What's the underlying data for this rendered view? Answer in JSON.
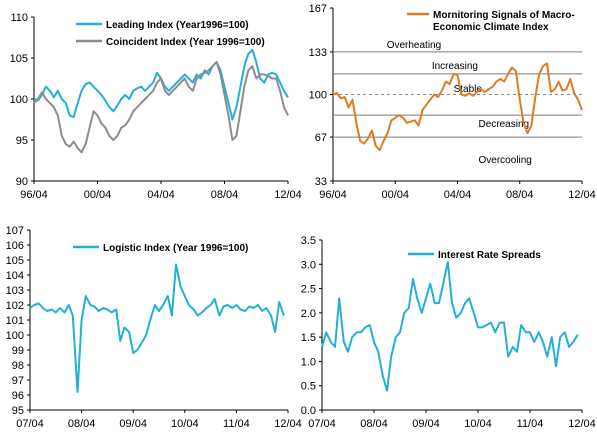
{
  "chart_data": [
    {
      "id": "leading-coincident",
      "type": "line",
      "xlabels": [
        "96/04",
        "00/04",
        "04/04",
        "08/04",
        "12/04"
      ],
      "x_range": [
        1996.25,
        2012.25
      ],
      "ylim": [
        90,
        110
      ],
      "yticks": [
        90,
        95,
        100,
        105,
        110
      ],
      "grid": false,
      "legend_position": "top-right",
      "colors": {
        "Leading Index (Year1996=100)": "#22b0d6",
        "Coincident Index (Year 1996=100)": "#8c8c8c"
      },
      "series": [
        {
          "name": "Leading Index (Year1996=100)",
          "color": "#22b0d6",
          "x": [
            1996.25,
            1996.5,
            1996.75,
            1997.0,
            1997.25,
            1997.5,
            1997.75,
            1998.0,
            1998.25,
            1998.5,
            1998.75,
            1999.0,
            1999.25,
            1999.5,
            1999.75,
            2000.0,
            2000.25,
            2000.5,
            2000.75,
            2001.0,
            2001.25,
            2001.5,
            2001.75,
            2002.0,
            2002.25,
            2002.5,
            2002.75,
            2003.0,
            2003.25,
            2003.5,
            2003.75,
            2004.0,
            2004.25,
            2004.5,
            2004.75,
            2005.0,
            2005.25,
            2005.5,
            2005.75,
            2006.0,
            2006.25,
            2006.5,
            2006.75,
            2007.0,
            2007.25,
            2007.5,
            2007.75,
            2008.0,
            2008.25,
            2008.5,
            2008.75,
            2009.0,
            2009.25,
            2009.5,
            2009.75,
            2010.0,
            2010.25,
            2010.5,
            2010.75,
            2011.0,
            2011.25,
            2011.5,
            2011.75,
            2012.0,
            2012.25
          ],
          "y": [
            100.0,
            99.8,
            100.5,
            101.5,
            101.0,
            100.2,
            101.0,
            100.0,
            99.5,
            98.0,
            97.8,
            99.5,
            101.0,
            101.8,
            102.0,
            101.5,
            101.0,
            100.5,
            99.8,
            99.0,
            98.5,
            99.2,
            100.0,
            100.5,
            100.0,
            101.0,
            101.3,
            101.5,
            101.0,
            101.5,
            102.0,
            103.2,
            102.5,
            101.5,
            101.0,
            101.5,
            102.0,
            102.5,
            103.0,
            102.5,
            102.0,
            103.0,
            102.5,
            103.5,
            103.0,
            104.0,
            104.5,
            103.5,
            101.5,
            99.5,
            97.5,
            99.0,
            101.5,
            104.0,
            105.5,
            106.0,
            104.5,
            102.5,
            102.0,
            103.0,
            103.2,
            103.0,
            102.0,
            101.0,
            100.2
          ]
        },
        {
          "name": "Coincident Index (Year 1996=100)",
          "color": "#8c8c8c",
          "x": [
            1996.25,
            1996.5,
            1996.75,
            1997.0,
            1997.25,
            1997.5,
            1997.75,
            1998.0,
            1998.25,
            1998.5,
            1998.75,
            1999.0,
            1999.25,
            1999.5,
            1999.75,
            2000.0,
            2000.25,
            2000.5,
            2000.75,
            2001.0,
            2001.25,
            2001.5,
            2001.75,
            2002.0,
            2002.25,
            2002.5,
            2002.75,
            2003.0,
            2003.25,
            2003.5,
            2003.75,
            2004.0,
            2004.25,
            2004.5,
            2004.75,
            2005.0,
            2005.25,
            2005.5,
            2005.75,
            2006.0,
            2006.25,
            2006.5,
            2006.75,
            2007.0,
            2007.25,
            2007.5,
            2007.75,
            2008.0,
            2008.25,
            2008.5,
            2008.75,
            2009.0,
            2009.25,
            2009.5,
            2009.75,
            2010.0,
            2010.25,
            2010.5,
            2010.75,
            2011.0,
            2011.25,
            2011.5,
            2011.75,
            2012.0,
            2012.25
          ],
          "y": [
            99.5,
            100.0,
            100.8,
            100.0,
            99.5,
            99.0,
            98.0,
            95.5,
            94.5,
            94.2,
            94.8,
            94.0,
            93.5,
            94.5,
            96.5,
            98.5,
            98.0,
            97.0,
            96.5,
            95.5,
            95.0,
            95.5,
            96.5,
            96.8,
            97.5,
            98.5,
            99.0,
            99.5,
            100.0,
            100.5,
            101.0,
            102.0,
            102.5,
            101.0,
            100.5,
            101.0,
            101.5,
            102.0,
            102.5,
            101.5,
            101.0,
            102.5,
            103.0,
            103.2,
            103.5,
            104.0,
            104.5,
            103.0,
            100.5,
            98.0,
            95.0,
            95.5,
            98.5,
            101.5,
            103.5,
            104.0,
            102.5,
            103.0,
            103.0,
            102.8,
            102.5,
            102.5,
            101.0,
            99.0,
            98.0
          ]
        }
      ]
    },
    {
      "id": "climate-signals",
      "type": "line",
      "xlabels": [
        "96/04",
        "00/04",
        "04/04",
        "08/04",
        "12/04"
      ],
      "x_range": [
        1996.25,
        2012.25
      ],
      "ylim": [
        33,
        167
      ],
      "yticks": [
        33,
        67,
        100,
        133,
        167
      ],
      "grid": false,
      "legend_position": "top-right",
      "bands": [
        {
          "value": 133,
          "style": "solid"
        },
        {
          "value": 116,
          "style": "solid"
        },
        {
          "value": 100,
          "style": "dashed"
        },
        {
          "value": 84,
          "style": "solid"
        },
        {
          "value": 67,
          "style": "solid"
        }
      ],
      "annotations": [
        {
          "text": "Overheating",
          "x": 1999.7,
          "y": 139
        },
        {
          "text": "Increasing",
          "x": 2002.6,
          "y": 123
        },
        {
          "text": "Stable",
          "x": 2004.0,
          "y": 105
        },
        {
          "text": "Decreasing",
          "x": 2005.6,
          "y": 78
        },
        {
          "text": "Overcooling",
          "x": 2005.6,
          "y": 50
        }
      ],
      "colors": {
        "Mornitoring Signals of Macro-Economic Climate Index": "#e07b22"
      },
      "series": [
        {
          "name": "Mornitoring Signals of Macro-Economic Climate Index",
          "legend_lines": [
            "Mornitoring Signals of Macro-",
            "Economic Climate Index"
          ],
          "color": "#e07b22",
          "x": [
            1996.25,
            1996.5,
            1996.75,
            1997.0,
            1997.25,
            1997.5,
            1997.75,
            1998.0,
            1998.25,
            1998.5,
            1998.75,
            1999.0,
            1999.25,
            1999.5,
            1999.75,
            2000.0,
            2000.25,
            2000.5,
            2000.75,
            2001.0,
            2001.25,
            2001.5,
            2001.75,
            2002.0,
            2002.25,
            2002.5,
            2002.75,
            2003.0,
            2003.25,
            2003.5,
            2003.75,
            2004.0,
            2004.25,
            2004.5,
            2004.75,
            2005.0,
            2005.25,
            2005.5,
            2005.75,
            2006.0,
            2006.25,
            2006.5,
            2006.75,
            2007.0,
            2007.25,
            2007.5,
            2007.75,
            2008.0,
            2008.25,
            2008.5,
            2008.75,
            2009.0,
            2009.25,
            2009.5,
            2009.75,
            2010.0,
            2010.25,
            2010.5,
            2010.75,
            2011.0,
            2011.25,
            2011.5,
            2011.75,
            2012.0,
            2012.25
          ],
          "y": [
            100,
            101,
            97,
            98,
            90,
            96,
            78,
            64,
            62,
            66,
            72,
            60,
            57,
            64,
            70,
            80,
            82,
            84,
            82,
            78,
            79,
            80,
            76,
            88,
            92,
            96,
            100,
            98,
            103,
            110,
            108,
            116,
            115,
            100,
            99,
            101,
            99,
            102,
            104,
            102,
            104,
            106,
            110,
            112,
            110,
            116,
            121,
            118,
            96,
            78,
            70,
            76,
            98,
            116,
            122,
            124,
            102,
            104,
            110,
            103,
            104,
            112,
            101,
            96,
            88
          ]
        }
      ]
    },
    {
      "id": "logistic",
      "type": "line",
      "xlabels": [
        "07/04",
        "08/04",
        "09/04",
        "10/04",
        "11/04",
        "12/04"
      ],
      "x_range": [
        2007.25,
        2012.25
      ],
      "ylim": [
        95,
        107
      ],
      "yticks": [
        95,
        96,
        97,
        98,
        99,
        100,
        101,
        102,
        103,
        104,
        105,
        106,
        107
      ],
      "grid": false,
      "legend_position": "top-center",
      "colors": {
        "Logistic Index (Year 1996=100)": "#22b0d6"
      },
      "series": [
        {
          "name": "Logistic Index (Year 1996=100)",
          "color": "#22b0d6",
          "x": [
            2007.25,
            2007.33,
            2007.42,
            2007.5,
            2007.58,
            2007.67,
            2007.75,
            2007.83,
            2007.92,
            2008.0,
            2008.08,
            2008.17,
            2008.25,
            2008.33,
            2008.42,
            2008.5,
            2008.58,
            2008.67,
            2008.75,
            2008.83,
            2008.92,
            2009.0,
            2009.08,
            2009.17,
            2009.25,
            2009.33,
            2009.42,
            2009.5,
            2009.58,
            2009.67,
            2009.75,
            2009.83,
            2009.92,
            2010.0,
            2010.08,
            2010.17,
            2010.25,
            2010.33,
            2010.42,
            2010.5,
            2010.58,
            2010.67,
            2010.75,
            2010.83,
            2010.92,
            2011.0,
            2011.08,
            2011.17,
            2011.25,
            2011.33,
            2011.42,
            2011.5,
            2011.58,
            2011.67,
            2011.75,
            2011.83,
            2011.92,
            2012.0,
            2012.08,
            2012.17
          ],
          "y": [
            101.8,
            102.0,
            102.1,
            101.8,
            101.6,
            101.7,
            101.5,
            101.8,
            101.5,
            102.0,
            101.3,
            96.2,
            101.0,
            102.6,
            102.0,
            101.9,
            101.6,
            101.8,
            101.7,
            101.5,
            101.7,
            99.6,
            100.5,
            100.2,
            98.8,
            99.0,
            99.5,
            100.0,
            101.0,
            102.0,
            101.6,
            102.0,
            102.6,
            101.3,
            104.7,
            103.2,
            102.6,
            102.0,
            101.7,
            101.3,
            101.5,
            101.8,
            102.0,
            102.4,
            101.3,
            101.9,
            102.0,
            101.8,
            102.0,
            101.7,
            101.6,
            101.9,
            101.8,
            102.0,
            101.6,
            101.8,
            101.3,
            100.2,
            102.2,
            101.3
          ]
        }
      ]
    },
    {
      "id": "interest-spreads",
      "type": "line",
      "xlabels": [
        "07/04",
        "08/04",
        "09/04",
        "10/04",
        "11/04",
        "12/04"
      ],
      "x_range": [
        2007.25,
        2012.25
      ],
      "ylim": [
        0.0,
        3.5
      ],
      "yticks": [
        "0.0",
        "0.5",
        "1.0",
        "1.5",
        "2.0",
        "2.5",
        "3.0",
        "3.5"
      ],
      "grid": false,
      "legend_position": "top-center",
      "colors": {
        "Interest Rate Spreads": "#22b0d6"
      },
      "series": [
        {
          "name": "Interest Rate Spreads",
          "color": "#22b0d6",
          "x": [
            2007.25,
            2007.33,
            2007.42,
            2007.5,
            2007.58,
            2007.67,
            2007.75,
            2007.83,
            2007.92,
            2008.0,
            2008.08,
            2008.17,
            2008.25,
            2008.33,
            2008.42,
            2008.5,
            2008.58,
            2008.67,
            2008.75,
            2008.83,
            2008.92,
            2009.0,
            2009.08,
            2009.17,
            2009.25,
            2009.33,
            2009.42,
            2009.5,
            2009.58,
            2009.67,
            2009.75,
            2009.83,
            2009.92,
            2010.0,
            2010.08,
            2010.17,
            2010.25,
            2010.33,
            2010.42,
            2010.5,
            2010.58,
            2010.67,
            2010.75,
            2010.83,
            2010.92,
            2011.0,
            2011.08,
            2011.17,
            2011.25,
            2011.33,
            2011.42,
            2011.5,
            2011.58,
            2011.67,
            2011.75,
            2011.83,
            2011.92,
            2012.0,
            2012.08,
            2012.17
          ],
          "y": [
            1.3,
            1.6,
            1.4,
            1.3,
            2.3,
            1.4,
            1.2,
            1.5,
            1.6,
            1.6,
            1.7,
            1.75,
            1.4,
            1.2,
            0.7,
            0.4,
            1.1,
            1.5,
            1.6,
            2.0,
            2.1,
            2.7,
            2.3,
            2.0,
            2.3,
            2.6,
            2.2,
            2.2,
            2.6,
            3.05,
            2.2,
            1.9,
            2.0,
            2.2,
            2.3,
            2.0,
            1.7,
            1.7,
            1.75,
            1.8,
            1.6,
            1.8,
            1.8,
            1.1,
            1.3,
            1.2,
            1.75,
            1.6,
            1.6,
            1.4,
            1.6,
            1.4,
            1.1,
            1.5,
            0.9,
            1.5,
            1.6,
            1.3,
            1.4,
            1.55
          ]
        }
      ]
    }
  ]
}
